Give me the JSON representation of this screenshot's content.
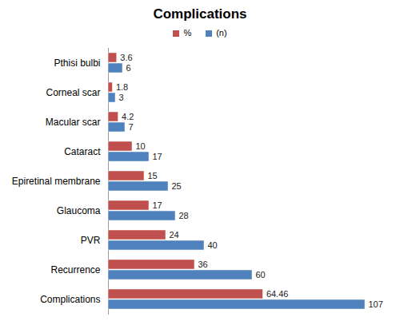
{
  "chart_data": {
    "type": "bar",
    "title": "Complications",
    "orientation": "horizontal",
    "categories": [
      "Pthisi bulbi",
      "Corneal scar",
      "Macular scar",
      "Cataract",
      "Epiretinal membrane",
      "Glaucoma",
      "PVR",
      "Recurrence",
      "Complications"
    ],
    "series": [
      {
        "name": "%",
        "color": "#c0504d",
        "values": [
          3.6,
          1.8,
          4.2,
          10,
          15,
          17,
          24,
          36,
          64.46
        ]
      },
      {
        "name": "(n)",
        "color": "#4f81bd",
        "values": [
          6,
          3,
          7,
          17,
          25,
          28,
          40,
          60,
          107
        ]
      }
    ],
    "xlim": [
      0,
      110
    ],
    "tick_labels": "y",
    "data_labels": true,
    "legend": "top",
    "grid": false
  }
}
